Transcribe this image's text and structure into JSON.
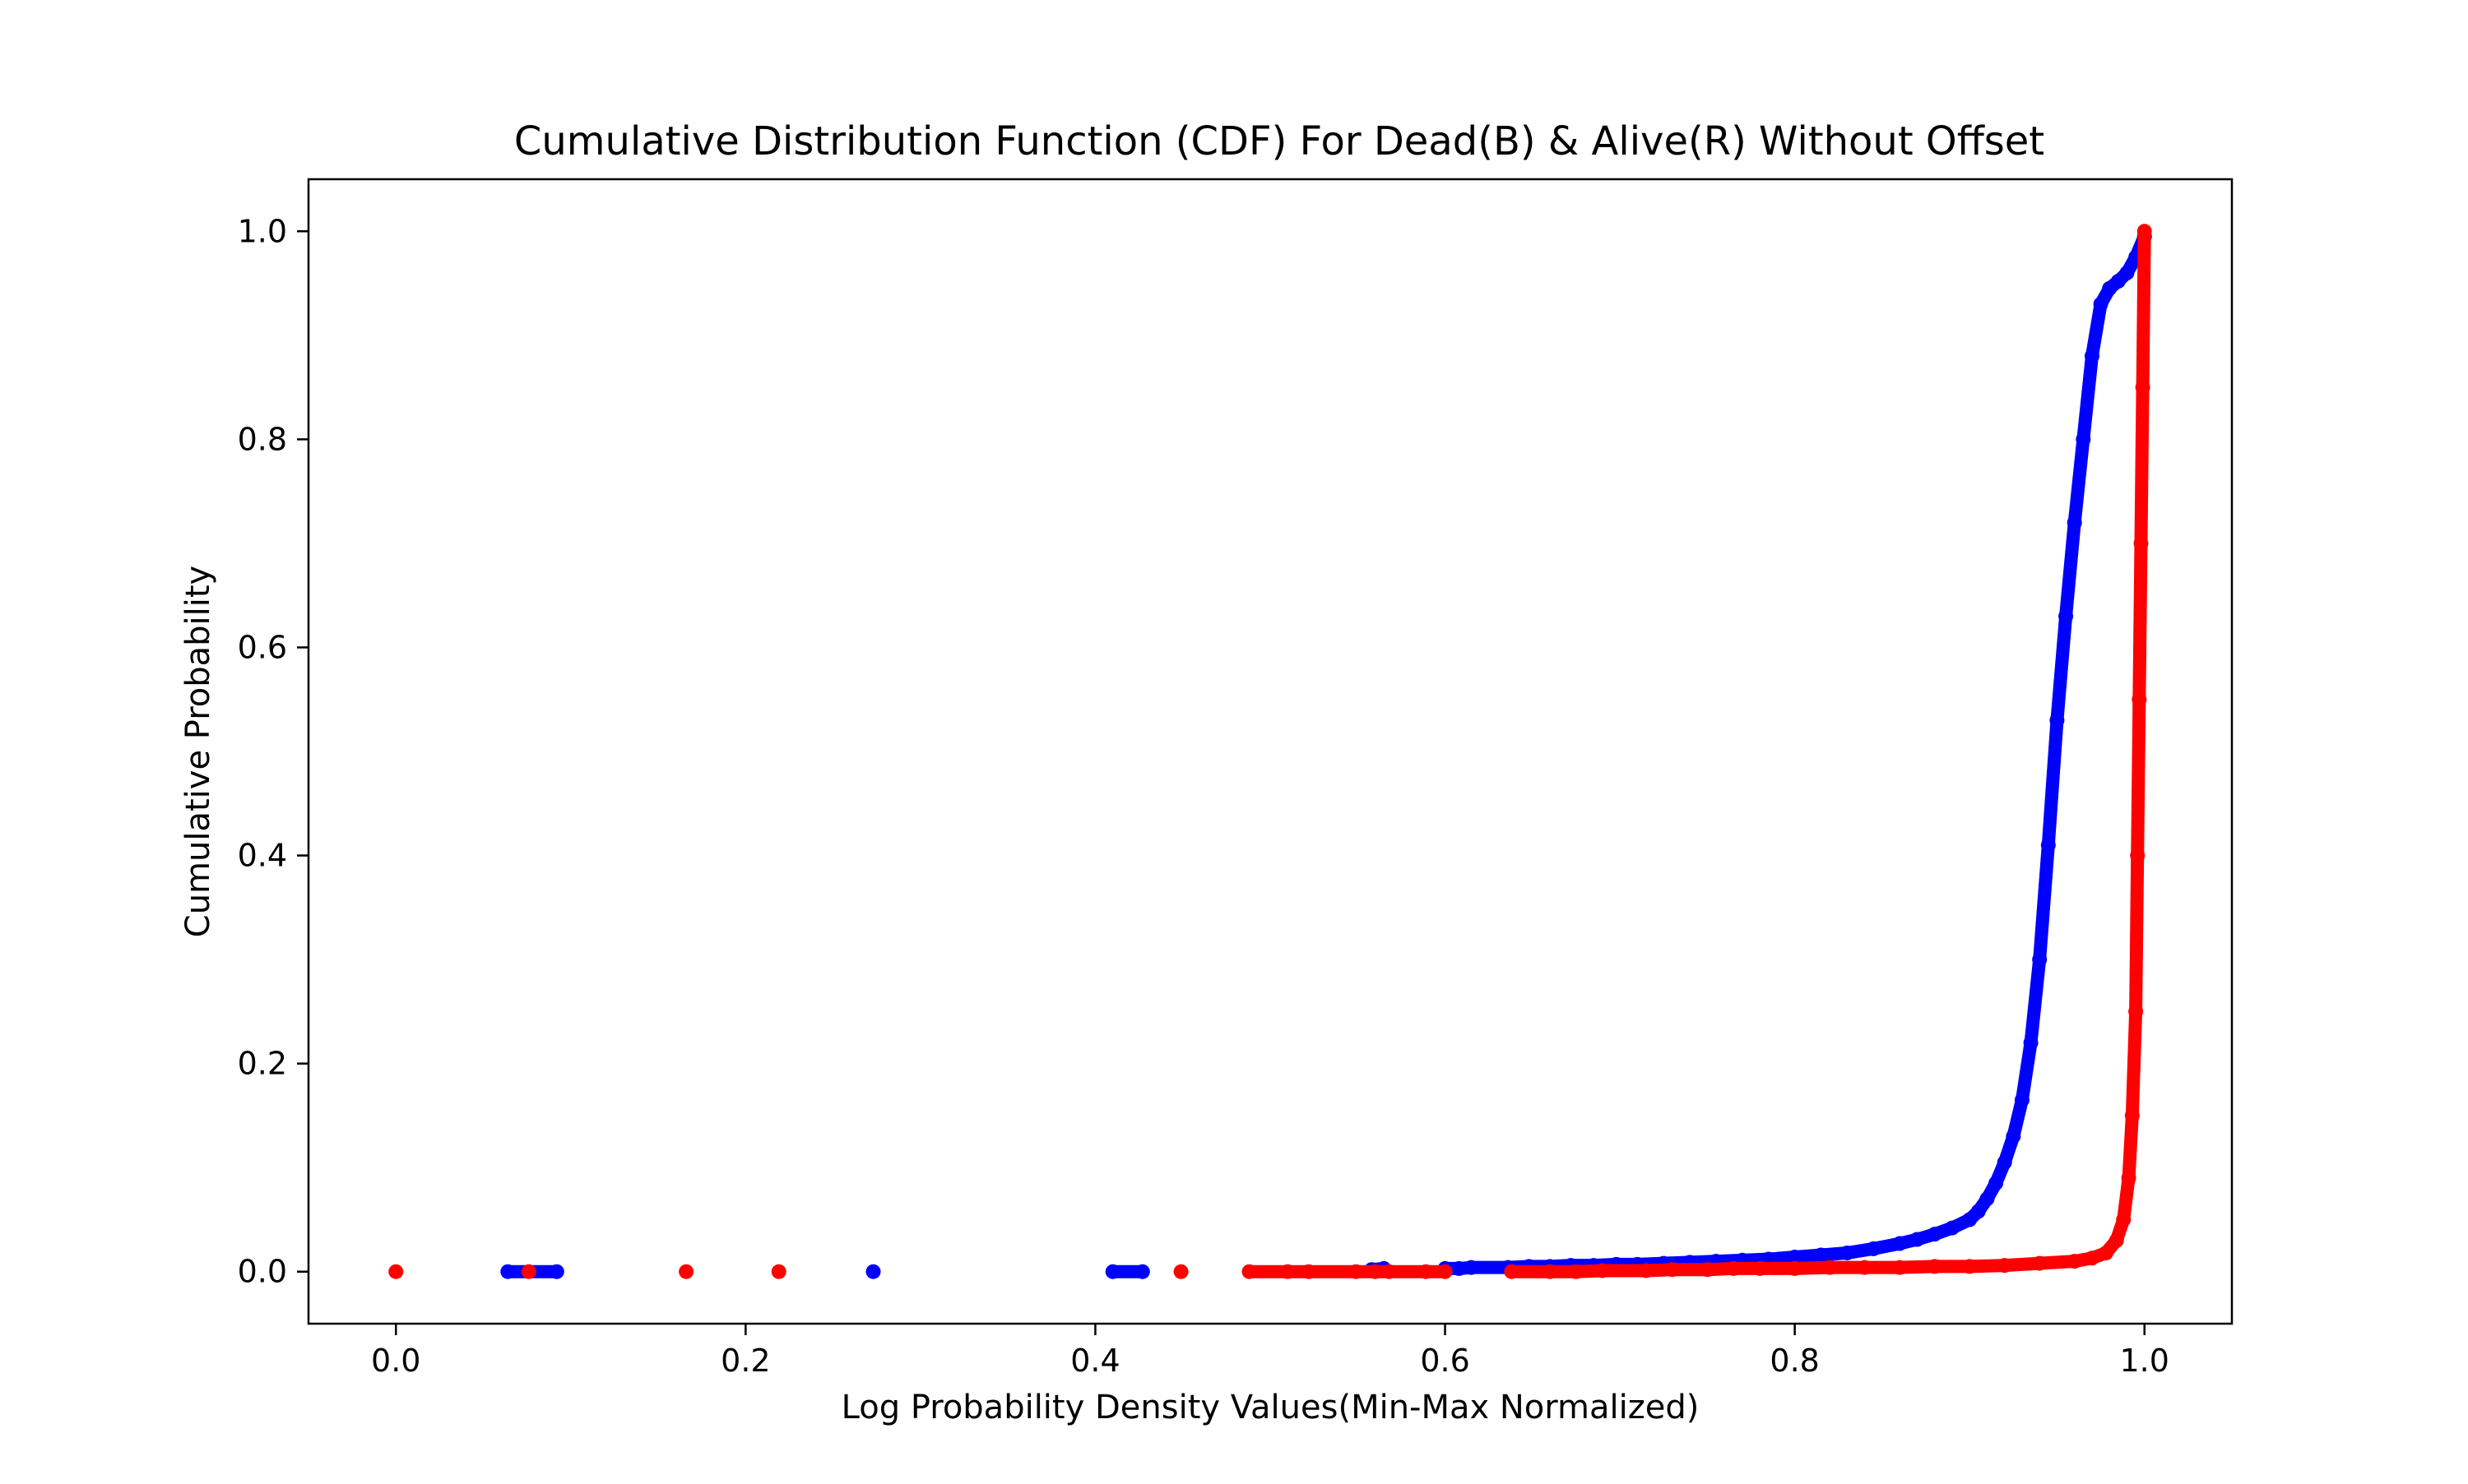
{
  "chart_data": {
    "type": "scatter",
    "title": "Cumulative Distribution Function (CDF) For Dead(B) & Alive(R) Without Offset",
    "xlabel": "Log Probability Density Values(Min-Max Normalized)",
    "ylabel": "Cumulative Probability",
    "xlim": [
      -0.05,
      1.05
    ],
    "ylim": [
      -0.05,
      1.05
    ],
    "xticks": [
      0.0,
      0.2,
      0.4,
      0.6,
      0.8,
      1.0
    ],
    "xtick_labels": [
      "0.0",
      "0.2",
      "0.4",
      "0.6",
      "0.8",
      "1.0"
    ],
    "yticks": [
      0.0,
      0.2,
      0.4,
      0.6,
      0.8,
      1.0
    ],
    "ytick_labels": [
      "0.0",
      "0.2",
      "0.4",
      "0.6",
      "0.8",
      "1.0"
    ],
    "grid": false,
    "legend": "none",
    "series": [
      {
        "color": "#0000ff",
        "x": [
          0.064,
          0.092,
          0.273,
          0.41,
          0.427,
          0.558,
          0.565,
          0.6,
          0.608,
          0.615,
          0.636,
          0.648,
          0.66,
          0.672,
          0.685,
          0.698,
          0.71,
          0.725,
          0.74,
          0.755,
          0.77,
          0.785,
          0.8,
          0.815,
          0.83,
          0.845,
          0.86,
          0.87,
          0.88,
          0.89,
          0.9,
          0.905,
          0.91,
          0.915,
          0.92,
          0.925,
          0.93,
          0.935,
          0.94,
          0.945,
          0.95,
          0.955,
          0.96,
          0.965,
          0.97,
          0.975,
          0.98,
          0.985,
          0.99,
          0.995,
          1.0
        ],
        "y": [
          0.0,
          0.0,
          0.0,
          0.0,
          0.0,
          0.002,
          0.003,
          0.003,
          0.003,
          0.004,
          0.004,
          0.005,
          0.005,
          0.006,
          0.006,
          0.007,
          0.007,
          0.008,
          0.009,
          0.01,
          0.011,
          0.012,
          0.014,
          0.016,
          0.018,
          0.022,
          0.027,
          0.031,
          0.036,
          0.042,
          0.05,
          0.058,
          0.07,
          0.085,
          0.105,
          0.13,
          0.165,
          0.22,
          0.3,
          0.41,
          0.53,
          0.63,
          0.72,
          0.8,
          0.88,
          0.93,
          0.945,
          0.952,
          0.96,
          0.975,
          0.995
        ]
      },
      {
        "color": "#ff0000",
        "x": [
          0.0,
          0.076,
          0.166,
          0.219,
          0.449,
          0.488,
          0.51,
          0.522,
          0.549,
          0.56,
          0.568,
          0.589,
          0.6,
          0.638,
          0.66,
          0.675,
          0.69,
          0.715,
          0.73,
          0.75,
          0.765,
          0.78,
          0.8,
          0.82,
          0.84,
          0.86,
          0.88,
          0.9,
          0.92,
          0.94,
          0.96,
          0.97,
          0.978,
          0.984,
          0.988,
          0.991,
          0.993,
          0.995,
          0.996,
          0.997,
          0.998,
          0.999,
          1.0
        ],
        "y": [
          0.0,
          0.0,
          0.0,
          0.0,
          0.0,
          0.0,
          0.0,
          0.0,
          0.0,
          0.0,
          0.0,
          0.0,
          0.0,
          0.0,
          0.0,
          0.0,
          0.001,
          0.001,
          0.002,
          0.002,
          0.003,
          0.003,
          0.003,
          0.004,
          0.004,
          0.004,
          0.005,
          0.005,
          0.006,
          0.008,
          0.01,
          0.013,
          0.018,
          0.03,
          0.05,
          0.09,
          0.15,
          0.25,
          0.4,
          0.55,
          0.7,
          0.85,
          1.0
        ]
      }
    ]
  }
}
